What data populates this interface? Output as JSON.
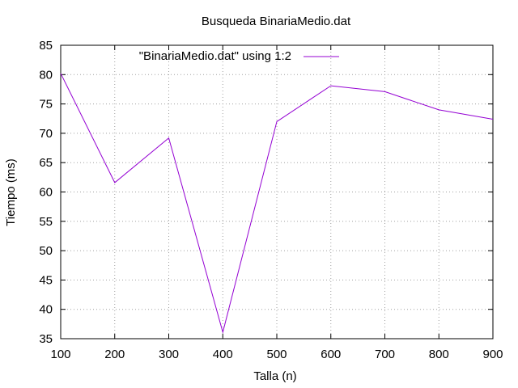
{
  "chart_data": {
    "type": "line",
    "title": "Busqueda BinariaMedio.dat",
    "xlabel": "Talla (n)",
    "ylabel": "Tiempo (ms)",
    "xlim": [
      100,
      900
    ],
    "ylim": [
      35,
      85
    ],
    "xticks": [
      100,
      200,
      300,
      400,
      500,
      600,
      700,
      800,
      900
    ],
    "yticks": [
      35,
      40,
      45,
      50,
      55,
      60,
      65,
      70,
      75,
      80,
      85
    ],
    "grid": true,
    "legend_position": "top-center",
    "series": [
      {
        "name": "\"BinariaMedio.dat\" using 1:2",
        "color": "#9400d3",
        "x": [
          100,
          200,
          300,
          400,
          500,
          600,
          700,
          800,
          900
        ],
        "y": [
          80.2,
          61.6,
          69.2,
          36.1,
          72.0,
          78.1,
          77.1,
          74.0,
          72.4
        ]
      }
    ]
  }
}
